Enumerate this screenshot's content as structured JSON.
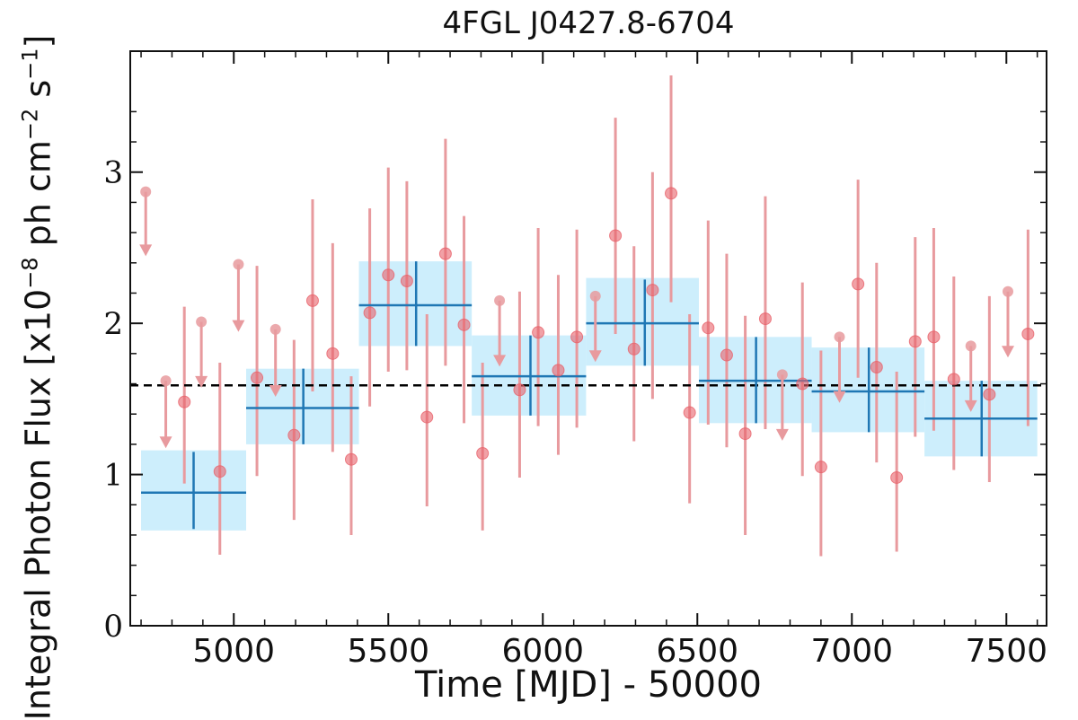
{
  "chart_data": {
    "type": "scatter",
    "title": "4FGL J0427.8-6704",
    "xlabel": "Time [MJD] - 50000",
    "ylabel": {
      "prefix": "Integral Photon Flux [x10",
      "exp1": "−8",
      "middle": " ph cm",
      "exp2": "−2",
      "middle2": " s",
      "exp3": "−1",
      "suffix": "]"
    },
    "xlim": [
      4665,
      7630
    ],
    "ylim": [
      0,
      3.8
    ],
    "xticks": [
      5000,
      5500,
      6000,
      6500,
      7000,
      7500
    ],
    "yticks": [
      0,
      1,
      2,
      3
    ],
    "mean_flux": 1.59,
    "colors": {
      "points": "#e8636b",
      "errorbars": "#e89a9e",
      "bins": "#cdeefc",
      "bin_lines": "#1f77b4",
      "mean_line": "#000000"
    },
    "binned": [
      {
        "x0": 4700,
        "x1": 5040,
        "y": 0.88,
        "ylo": 0.63,
        "yhi": 1.16,
        "yerr_lo": 0.64,
        "yerr_hi": 1.15,
        "xc": 4870
      },
      {
        "x0": 5040,
        "x1": 5405,
        "y": 1.44,
        "ylo": 1.2,
        "yhi": 1.7,
        "yerr_lo": 1.2,
        "yerr_hi": 1.7,
        "xc": 5225
      },
      {
        "x0": 5405,
        "x1": 5770,
        "y": 2.12,
        "ylo": 1.85,
        "yhi": 2.41,
        "yerr_lo": 1.85,
        "yerr_hi": 2.41,
        "xc": 5590
      },
      {
        "x0": 5770,
        "x1": 6140,
        "y": 1.65,
        "ylo": 1.39,
        "yhi": 1.92,
        "yerr_lo": 1.39,
        "yerr_hi": 1.92,
        "xc": 5960
      },
      {
        "x0": 6140,
        "x1": 6505,
        "y": 2.0,
        "ylo": 1.72,
        "yhi": 2.3,
        "yerr_lo": 1.72,
        "yerr_hi": 2.29,
        "xc": 6330
      },
      {
        "x0": 6505,
        "x1": 6870,
        "y": 1.62,
        "ylo": 1.34,
        "yhi": 1.91,
        "yerr_lo": 1.34,
        "yerr_hi": 1.91,
        "xc": 6690
      },
      {
        "x0": 6870,
        "x1": 7235,
        "y": 1.55,
        "ylo": 1.28,
        "yhi": 1.84,
        "yerr_lo": 1.28,
        "yerr_hi": 1.84,
        "xc": 7055
      },
      {
        "x0": 7235,
        "x1": 7600,
        "y": 1.37,
        "ylo": 1.12,
        "yhi": 1.62,
        "yerr_lo": 1.12,
        "yerr_hi": 1.62,
        "xc": 7420
      }
    ],
    "points": [
      {
        "x": 4840,
        "y": 1.48,
        "lo": 0.94,
        "hi": 2.11
      },
      {
        "x": 4955,
        "y": 1.02,
        "lo": 0.47,
        "hi": 1.74
      },
      {
        "x": 5075,
        "y": 1.64,
        "lo": 0.99,
        "hi": 2.38
      },
      {
        "x": 5195,
        "y": 1.26,
        "lo": 0.7,
        "hi": 1.89
      },
      {
        "x": 5255,
        "y": 2.15,
        "lo": 1.55,
        "hi": 2.82
      },
      {
        "x": 5320,
        "y": 1.8,
        "lo": 1.15,
        "hi": 2.53
      },
      {
        "x": 5380,
        "y": 1.1,
        "lo": 0.6,
        "hi": 1.65
      },
      {
        "x": 5440,
        "y": 2.07,
        "lo": 1.45,
        "hi": 2.76
      },
      {
        "x": 5500,
        "y": 2.32,
        "lo": 1.68,
        "hi": 3.03
      },
      {
        "x": 5560,
        "y": 2.28,
        "lo": 1.69,
        "hi": 2.94
      },
      {
        "x": 5625,
        "y": 1.38,
        "lo": 0.79,
        "hi": 2.06
      },
      {
        "x": 5685,
        "y": 2.46,
        "lo": 1.72,
        "hi": 3.22
      },
      {
        "x": 5745,
        "y": 1.99,
        "lo": 1.34,
        "hi": 2.71
      },
      {
        "x": 5805,
        "y": 1.14,
        "lo": 0.63,
        "hi": 1.74
      },
      {
        "x": 5925,
        "y": 1.56,
        "lo": 0.98,
        "hi": 2.21
      },
      {
        "x": 5985,
        "y": 1.94,
        "lo": 1.32,
        "hi": 2.63
      },
      {
        "x": 6050,
        "y": 1.69,
        "lo": 1.13,
        "hi": 2.32
      },
      {
        "x": 6110,
        "y": 1.91,
        "lo": 1.31,
        "hi": 2.62
      },
      {
        "x": 6235,
        "y": 2.58,
        "lo": 1.93,
        "hi": 3.36
      },
      {
        "x": 6295,
        "y": 1.83,
        "lo": 1.22,
        "hi": 2.51
      },
      {
        "x": 6355,
        "y": 2.22,
        "lo": 1.5,
        "hi": 3.0
      },
      {
        "x": 6415,
        "y": 2.86,
        "lo": 2.14,
        "hi": 3.64
      },
      {
        "x": 6475,
        "y": 1.41,
        "lo": 0.81,
        "hi": 2.06
      },
      {
        "x": 6535,
        "y": 1.97,
        "lo": 1.33,
        "hi": 2.68
      },
      {
        "x": 6595,
        "y": 1.79,
        "lo": 1.18,
        "hi": 2.46
      },
      {
        "x": 6655,
        "y": 1.27,
        "lo": 0.6,
        "hi": 2.05
      },
      {
        "x": 6720,
        "y": 2.03,
        "lo": 1.3,
        "hi": 2.84
      },
      {
        "x": 6840,
        "y": 1.6,
        "lo": 0.99,
        "hi": 2.27
      },
      {
        "x": 6900,
        "y": 1.05,
        "lo": 0.46,
        "hi": 1.82
      },
      {
        "x": 7020,
        "y": 2.26,
        "lo": 1.64,
        "hi": 2.95
      },
      {
        "x": 7080,
        "y": 1.71,
        "lo": 1.08,
        "hi": 2.4
      },
      {
        "x": 7145,
        "y": 0.98,
        "lo": 0.49,
        "hi": 1.68
      },
      {
        "x": 7205,
        "y": 1.88,
        "lo": 1.25,
        "hi": 2.57
      },
      {
        "x": 7265,
        "y": 1.91,
        "lo": 1.29,
        "hi": 2.63
      },
      {
        "x": 7330,
        "y": 1.63,
        "lo": 1.03,
        "hi": 2.31
      },
      {
        "x": 7445,
        "y": 1.53,
        "lo": 0.95,
        "hi": 2.18
      },
      {
        "x": 7570,
        "y": 1.93,
        "lo": 1.32,
        "hi": 2.62
      }
    ],
    "upper_limits": [
      {
        "x": 4715,
        "y": 2.87,
        "arrow_to": 2.45
      },
      {
        "x": 4780,
        "y": 1.62,
        "arrow_to": 1.18
      },
      {
        "x": 4895,
        "y": 2.01,
        "arrow_to": 1.58
      },
      {
        "x": 5015,
        "y": 2.39,
        "arrow_to": 1.95
      },
      {
        "x": 5135,
        "y": 1.96,
        "arrow_to": 1.52
      },
      {
        "x": 5860,
        "y": 2.15,
        "arrow_to": 1.72
      },
      {
        "x": 6170,
        "y": 2.18,
        "arrow_to": 1.75
      },
      {
        "x": 6775,
        "y": 1.66,
        "arrow_to": 1.23
      },
      {
        "x": 6960,
        "y": 1.91,
        "arrow_to": 1.48
      },
      {
        "x": 7385,
        "y": 1.85,
        "arrow_to": 1.42
      },
      {
        "x": 7505,
        "y": 2.21,
        "arrow_to": 1.78
      }
    ]
  }
}
